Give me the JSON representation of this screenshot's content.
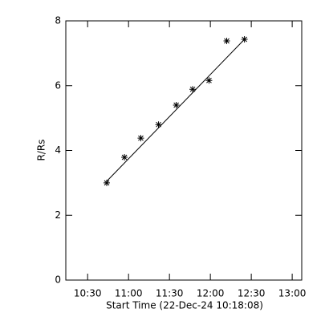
{
  "chart_data": {
    "type": "scatter",
    "x": [
      "10:44",
      "10:57",
      "11:09",
      "11:22",
      "11:35",
      "11:47",
      "11:59",
      "12:12",
      "12:25"
    ],
    "values": [
      3.0,
      3.79,
      4.38,
      4.8,
      5.4,
      5.89,
      6.16,
      7.38,
      7.43
    ],
    "fit": {
      "x": [
        "10:44",
        "12:25"
      ],
      "values": [
        3.05,
        7.43
      ]
    },
    "xlabel": "Start Time (22-Dec-24 10:18:08)",
    "ylabel": "R/Rs",
    "xlim": [
      "10:14",
      "13:07"
    ],
    "xticks": [
      "10:30",
      "11:00",
      "11:30",
      "12:00",
      "12:30",
      "13:00"
    ],
    "ylim": [
      0,
      8
    ],
    "yticks": [
      0,
      2,
      4,
      6,
      8
    ],
    "color": "#000000"
  }
}
